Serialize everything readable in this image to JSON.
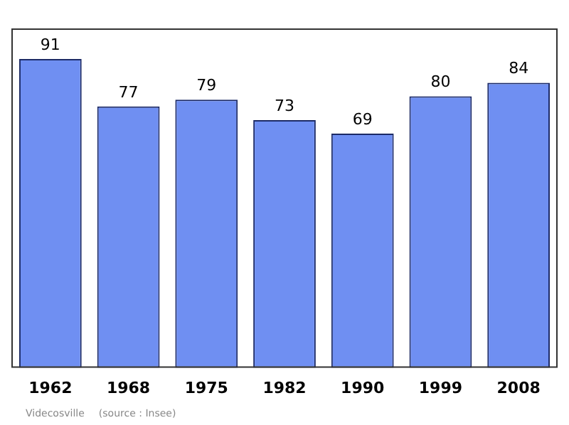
{
  "chart_data": {
    "type": "bar",
    "categories": [
      "1962",
      "1968",
      "1975",
      "1982",
      "1990",
      "1999",
      "2008"
    ],
    "values": [
      91,
      77,
      79,
      73,
      69,
      80,
      84
    ],
    "color": "#6f8ff2",
    "data_labels": true,
    "grid": false,
    "legend": false,
    "tick_labels": "x",
    "annotations": [
      "Videcosville",
      "(source : Insee)"
    ]
  }
}
